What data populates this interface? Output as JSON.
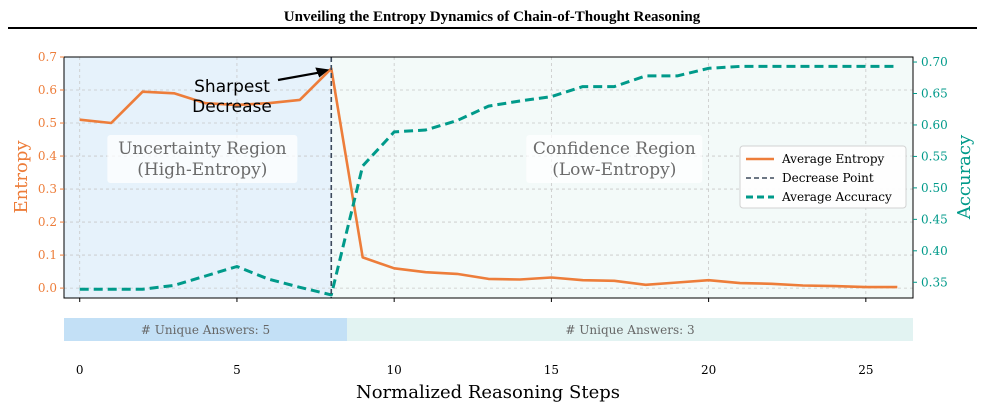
{
  "chart_data": {
    "type": "line",
    "title": "Unveiling the Entropy Dynamics of Chain-of-Thought Reasoning",
    "xlabel": "Normalized Reasoning Steps",
    "ylabel_left": "Entropy",
    "ylabel_right": "Accuracy",
    "xlim": [
      -0.5,
      26.5
    ],
    "ylim_left": [
      -0.03,
      0.7
    ],
    "ylim_right": [
      0.325,
      0.708
    ],
    "x_ticks": [
      0,
      5,
      10,
      15,
      20,
      25
    ],
    "y_left_ticks": [
      0.0,
      0.1,
      0.2,
      0.3,
      0.4,
      0.5,
      0.6,
      0.7
    ],
    "y_right_ticks": [
      0.35,
      0.4,
      0.45,
      0.5,
      0.55,
      0.6,
      0.65,
      0.7
    ],
    "grid": true,
    "legend_position": "center-right",
    "x": [
      0,
      1,
      2,
      3,
      4,
      5,
      6,
      7,
      8,
      9,
      10,
      11,
      12,
      13,
      14,
      15,
      16,
      17,
      18,
      19,
      20,
      21,
      22,
      23,
      24,
      25,
      26
    ],
    "series": [
      {
        "name": "Average Entropy",
        "axis": "left",
        "style": "solid",
        "color": "#ed7d3a",
        "values": [
          0.51,
          0.5,
          0.595,
          0.59,
          0.56,
          0.555,
          0.56,
          0.57,
          0.665,
          0.093,
          0.06,
          0.048,
          0.043,
          0.028,
          0.026,
          0.032,
          0.024,
          0.022,
          0.01,
          0.017,
          0.024,
          0.015,
          0.013,
          0.008,
          0.006,
          0.003,
          0.003
        ]
      },
      {
        "name": "Average Accuracy",
        "axis": "right",
        "style": "dashed",
        "color": "#009a8a",
        "values": [
          0.339,
          0.339,
          0.339,
          0.345,
          0.36,
          0.375,
          0.355,
          0.342,
          0.33,
          0.535,
          0.589,
          0.592,
          0.607,
          0.63,
          0.638,
          0.645,
          0.661,
          0.661,
          0.678,
          0.678,
          0.69,
          0.693,
          0.693,
          0.693,
          0.693,
          0.693,
          0.693
        ]
      }
    ],
    "decrease_point": {
      "name": "Decrease Point",
      "x": 8,
      "color": "#3d4a5c"
    },
    "regions": [
      {
        "label_line1": "Uncertainty Region",
        "label_line2": "(High-Entropy)",
        "x_start": -0.5,
        "x_end": 8,
        "color": "#e6f2fb"
      },
      {
        "label_line1": "Confidence Region",
        "label_line2": "(Low-Entropy)",
        "x_start": 8,
        "x_end": 26.5,
        "color": "#f3faf9"
      }
    ],
    "annotation": {
      "line1": "Sharpest",
      "line2": "Decrease",
      "x": 8,
      "y": 0.665
    },
    "answer_bands": [
      {
        "label": "# Unique Answers: 5",
        "x_start": -0.5,
        "x_end": 8.5,
        "color": "#c3e0f6"
      },
      {
        "label": "# Unique Answers: 3",
        "x_start": 8.5,
        "x_end": 26.5,
        "color": "#e2f3f2"
      }
    ]
  },
  "colors": {
    "entropy": "#ed7d3a",
    "accuracy": "#009a8a",
    "decrease_line": "#3d4a5c",
    "grid": "#c8c8c8"
  }
}
